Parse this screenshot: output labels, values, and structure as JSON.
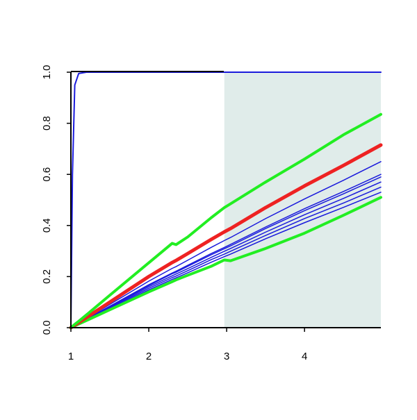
{
  "chart_data": {
    "type": "line",
    "x": [
      1,
      1.02,
      1.05,
      1.1,
      1.2,
      1.5,
      2,
      2.3,
      2.35,
      2.5,
      2.8,
      2.97,
      3.05,
      3.5,
      4,
      4.5,
      4.98
    ],
    "xlim": [
      1,
      4.98
    ],
    "ylim": [
      0,
      1
    ],
    "xticks": [
      1,
      2,
      3,
      4
    ],
    "yticks": [
      {
        "value": 0,
        "label": "0.0"
      },
      0.2,
      0.4,
      0.6,
      0.8,
      {
        "value": 1,
        "label": "1.0"
      }
    ],
    "shade": {
      "xlim": [
        2.97,
        4.98
      ],
      "color": "#e0ecea"
    },
    "series": [
      {
        "color": "#1a1adc",
        "line_width": 1.5,
        "values": [
          0,
          0.004,
          0.009,
          0.018,
          0.036,
          0.091,
          0.182,
          0.232,
          0.239,
          0.264,
          0.314,
          0.341,
          0.353,
          0.427,
          0.504,
          0.577,
          0.65
        ]
      },
      {
        "color": "#1a1adc",
        "line_width": 1.5,
        "values": [
          0,
          0.003,
          0.008,
          0.017,
          0.034,
          0.084,
          0.168,
          0.214,
          0.221,
          0.244,
          0.29,
          0.314,
          0.326,
          0.394,
          0.466,
          0.533,
          0.6
        ]
      },
      {
        "color": "#1a1adc",
        "line_width": 1.5,
        "values": [
          0,
          0.003,
          0.008,
          0.017,
          0.033,
          0.083,
          0.165,
          0.211,
          0.217,
          0.24,
          0.285,
          0.309,
          0.32,
          0.388,
          0.458,
          0.524,
          0.59
        ]
      },
      {
        "color": "#1a1adc",
        "line_width": 1.5,
        "values": [
          0,
          0.003,
          0.008,
          0.016,
          0.032,
          0.08,
          0.16,
          0.203,
          0.21,
          0.231,
          0.275,
          0.299,
          0.31,
          0.374,
          0.442,
          0.506,
          0.57
        ]
      },
      {
        "color": "#1a1adc",
        "line_width": 1.5,
        "values": [
          0,
          0.003,
          0.008,
          0.015,
          0.031,
          0.077,
          0.154,
          0.196,
          0.202,
          0.223,
          0.266,
          0.288,
          0.299,
          0.361,
          0.427,
          0.488,
          0.55
        ]
      },
      {
        "color": "#1a1adc",
        "line_width": 1.5,
        "values": [
          0,
          0.003,
          0.007,
          0.015,
          0.03,
          0.074,
          0.148,
          0.189,
          0.195,
          0.215,
          0.256,
          0.278,
          0.288,
          0.348,
          0.411,
          0.471,
          0.53
        ]
      },
      {
        "color": "#1a1adc",
        "line_width": 2,
        "values": [
          0,
          0.6,
          0.95,
          0.995,
          1,
          1,
          1,
          1,
          1,
          1,
          1,
          1,
          1,
          1,
          1,
          1,
          1
        ]
      },
      {
        "color": "#22ee22",
        "line_width": 4,
        "values": [
          0,
          0.003,
          0.007,
          0.014,
          0.028,
          0.07,
          0.14,
          0.18,
          0.187,
          0.205,
          0.24,
          0.265,
          0.262,
          0.31,
          0.37,
          0.44,
          0.51
        ]
      },
      {
        "color": "#ee2222",
        "line_width": 5,
        "values": [
          0,
          0.004,
          0.01,
          0.02,
          0.04,
          0.1,
          0.2,
          0.255,
          0.263,
          0.29,
          0.345,
          0.375,
          0.388,
          0.47,
          0.555,
          0.635,
          0.715
        ]
      },
      {
        "color": "#22ee22",
        "line_width": 4,
        "values": [
          0,
          0.005,
          0.013,
          0.025,
          0.05,
          0.127,
          0.254,
          0.33,
          0.325,
          0.355,
          0.43,
          0.47,
          0.485,
          0.57,
          0.66,
          0.755,
          0.835
        ]
      }
    ]
  }
}
